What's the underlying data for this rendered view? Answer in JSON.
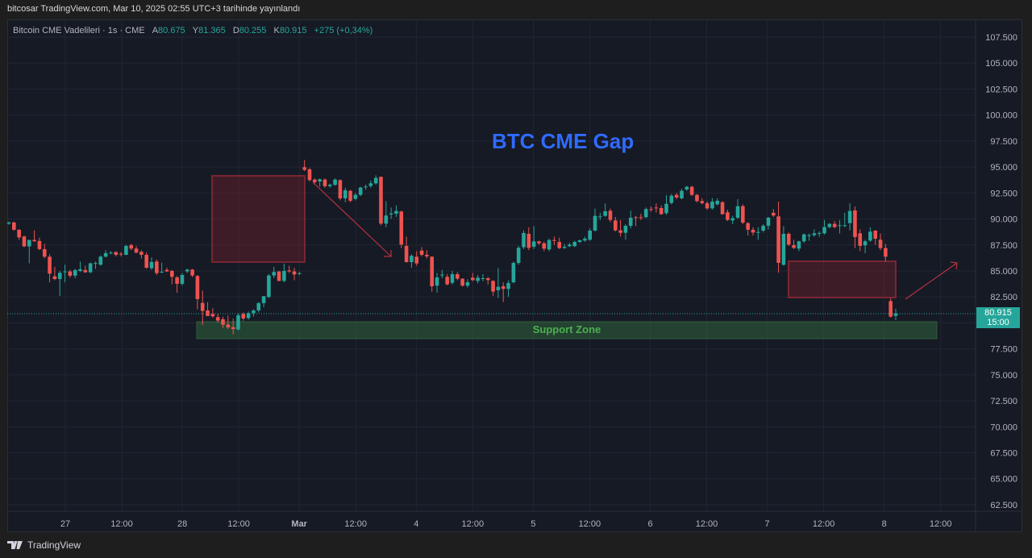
{
  "header": {
    "published_line": "bitcosar TradingView.com, Mar 10, 2025 02:55 UTC+3 tarihinde yayınlandı"
  },
  "legend": {
    "symbol": "Bitcoin CME Vadelileri · 1s · CME",
    "open_label": "A",
    "open": "80.675",
    "high_label": "Y",
    "high": "81.365",
    "low_label": "D",
    "low": "80.255",
    "close_label": "K",
    "close": "80.915",
    "change": "+275 (+0,34%)"
  },
  "annotations": {
    "title": "BTC CME Gap",
    "support": "Support Zone"
  },
  "price_tag": {
    "price": "80.915",
    "countdown": "15:00"
  },
  "footer": {
    "brand": "TradingView"
  },
  "colors": {
    "up": "#26a69a",
    "down": "#ef5350",
    "background": "#161a25",
    "gap_box": "#7a1f2b",
    "support_zone": "#2e5e3a",
    "title": "#2f6bff"
  },
  "chart_data": {
    "type": "candlestick",
    "title": "",
    "ylim": [
      61.9,
      109.2
    ],
    "grid": true,
    "y_ticks": [
      "107.500",
      "105.000",
      "102.500",
      "100.000",
      "97.500",
      "95.000",
      "92.500",
      "90.000",
      "87.500",
      "85.000",
      "82.500",
      "77.500",
      "75.000",
      "72.500",
      "70.000",
      "67.500",
      "65.000",
      "62.500"
    ],
    "y_tick_values": [
      107.5,
      105,
      102.5,
      100,
      97.5,
      95,
      92.5,
      90,
      87.5,
      85,
      82.5,
      77.5,
      75,
      72.5,
      70,
      67.5,
      65,
      62.5
    ],
    "x_ticks": [
      "27",
      "12:00",
      "28",
      "12:00",
      "Mar",
      "12:00",
      "4",
      "12:00",
      "5",
      "12:00",
      "6",
      "12:00",
      "7",
      "12:00",
      "8",
      "12:00"
    ],
    "last_price": 80.915,
    "ohlc": [
      [
        89.55,
        89.75,
        89.45,
        89.66
      ],
      [
        89.66,
        89.75,
        88.9,
        88.96
      ],
      [
        88.96,
        89.0,
        88.0,
        88.23
      ],
      [
        88.31,
        88.4,
        87.3,
        87.36
      ],
      [
        87.36,
        88.0,
        85.73,
        87.98
      ],
      [
        87.98,
        88.9,
        87.8,
        87.85
      ],
      [
        87.88,
        88.2,
        87.0,
        87.1
      ],
      [
        87.1,
        87.6,
        86.2,
        86.37
      ],
      [
        86.37,
        86.6,
        83.9,
        84.74
      ],
      [
        84.48,
        85.4,
        84.1,
        84.22
      ],
      [
        84.22,
        85.0,
        82.6,
        84.82
      ],
      [
        84.9,
        85.6,
        83.9,
        84.95
      ],
      [
        84.95,
        85.1,
        84.35,
        84.54
      ],
      [
        84.54,
        85.2,
        84.3,
        85.08
      ],
      [
        85.0,
        85.9,
        84.9,
        85.16
      ],
      [
        85.08,
        85.5,
        84.8,
        84.87
      ],
      [
        84.87,
        85.8,
        84.8,
        85.73
      ],
      [
        85.7,
        85.9,
        85.2,
        85.76
      ],
      [
        85.6,
        86.5,
        85.5,
        86.37
      ],
      [
        86.37,
        87.0,
        86.3,
        86.71
      ],
      [
        86.72,
        86.9,
        86.6,
        86.76
      ],
      [
        86.81,
        86.9,
        86.4,
        86.55
      ],
      [
        86.66,
        86.8,
        86.4,
        86.63
      ],
      [
        86.55,
        87.5,
        86.5,
        87.41
      ],
      [
        87.49,
        87.6,
        87.0,
        87.15
      ],
      [
        87.15,
        87.4,
        86.7,
        86.76
      ],
      [
        86.84,
        87.0,
        86.2,
        86.55
      ],
      [
        86.55,
        86.8,
        85.2,
        85.31
      ],
      [
        85.26,
        86.3,
        85.1,
        85.86
      ],
      [
        85.91,
        86.1,
        84.6,
        84.79
      ],
      [
        84.9,
        85.8,
        84.8,
        84.92
      ],
      [
        85.1,
        85.3,
        84.9,
        84.95
      ],
      [
        85.0,
        85.1,
        83.7,
        84.43
      ],
      [
        84.38,
        84.5,
        82.9,
        83.76
      ],
      [
        83.76,
        84.8,
        83.6,
        84.61
      ],
      [
        84.95,
        85.2,
        84.8,
        85.13
      ],
      [
        85.13,
        85.2,
        84.4,
        84.56
      ],
      [
        84.51,
        84.6,
        81.3,
        82.29
      ],
      [
        81.92,
        83.1,
        79.8,
        81.15
      ],
      [
        81.2,
        82.0,
        80.9,
        80.66
      ],
      [
        80.86,
        81.4,
        80.5,
        80.63
      ],
      [
        80.55,
        80.9,
        80.0,
        80.22
      ],
      [
        80.35,
        80.6,
        79.5,
        79.83
      ],
      [
        79.83,
        80.7,
        79.4,
        79.57
      ],
      [
        79.59,
        80.4,
        78.9,
        79.41
      ],
      [
        79.36,
        80.9,
        79.3,
        80.73
      ],
      [
        80.86,
        81.0,
        80.2,
        80.42
      ],
      [
        80.47,
        81.1,
        80.3,
        80.94
      ],
      [
        80.94,
        81.3,
        80.6,
        81.2
      ],
      [
        81.2,
        82.0,
        81.0,
        81.9
      ],
      [
        81.9,
        82.6,
        81.5,
        82.57
      ],
      [
        82.49,
        84.7,
        82.4,
        84.56
      ],
      [
        84.56,
        85.4,
        84.3,
        84.9
      ],
      [
        84.95,
        85.0,
        84.0,
        84.04
      ],
      [
        84.04,
        85.7,
        83.9,
        85.0
      ],
      [
        85.05,
        85.5,
        84.8,
        84.95
      ],
      [
        84.95,
        85.3,
        84.1,
        84.66
      ],
      [
        84.74,
        84.9,
        84.6,
        84.79
      ],
      [
        94.98,
        95.68,
        94.6,
        94.73
      ],
      [
        94.78,
        94.9,
        93.6,
        93.74
      ],
      [
        93.79,
        93.9,
        93.3,
        93.54
      ],
      [
        93.61,
        93.9,
        93.1,
        93.82
      ],
      [
        93.79,
        93.9,
        93.0,
        93.15
      ],
      [
        93.17,
        93.4,
        93.0,
        93.3
      ],
      [
        93.28,
        93.9,
        93.2,
        93.79
      ],
      [
        93.74,
        93.8,
        91.8,
        91.98
      ],
      [
        91.98,
        93.0,
        91.6,
        92.76
      ],
      [
        92.71,
        92.8,
        91.6,
        91.75
      ],
      [
        91.93,
        92.5,
        91.8,
        92.32
      ],
      [
        92.32,
        93.1,
        92.2,
        93.02
      ],
      [
        93.1,
        93.3,
        92.8,
        93.12
      ],
      [
        93.17,
        93.7,
        93.0,
        93.43
      ],
      [
        93.43,
        94.2,
        93.3,
        93.95
      ],
      [
        94.05,
        94.1,
        89.4,
        89.55
      ],
      [
        89.55,
        91.7,
        89.2,
        90.33
      ],
      [
        90.43,
        91.1,
        90.0,
        90.53
      ],
      [
        90.51,
        91.3,
        90.2,
        90.77
      ],
      [
        90.72,
        90.8,
        87.2,
        87.53
      ],
      [
        87.4,
        88.3,
        85.8,
        85.85
      ],
      [
        85.85,
        86.6,
        85.3,
        86.45
      ],
      [
        86.37,
        86.9,
        85.5,
        85.72
      ],
      [
        86.96,
        87.3,
        86.4,
        86.55
      ],
      [
        86.55,
        87.0,
        86.2,
        86.4
      ],
      [
        86.37,
        86.4,
        83.0,
        83.52
      ],
      [
        83.58,
        84.8,
        82.9,
        84.38
      ],
      [
        84.6,
        85.1,
        84.3,
        84.64
      ],
      [
        84.43,
        84.7,
        83.6,
        83.71
      ],
      [
        83.86,
        85.0,
        83.7,
        84.69
      ],
      [
        84.69,
        84.9,
        84.1,
        84.25
      ],
      [
        84.25,
        84.3,
        83.5,
        83.58
      ],
      [
        83.58,
        84.2,
        83.4,
        83.91
      ],
      [
        84.35,
        84.8,
        84.0,
        84.12
      ],
      [
        84.04,
        84.6,
        83.8,
        84.35
      ],
      [
        84.3,
        84.7,
        84.0,
        84.3
      ],
      [
        84.3,
        84.4,
        83.7,
        84.12
      ],
      [
        84.04,
        84.1,
        82.6,
        83.01
      ],
      [
        83.14,
        85.3,
        82.4,
        83.47
      ],
      [
        83.52,
        83.9,
        82.0,
        83.27
      ],
      [
        83.27,
        84.1,
        82.5,
        83.83
      ],
      [
        83.91,
        85.9,
        83.8,
        85.77
      ],
      [
        85.77,
        87.4,
        85.6,
        87.22
      ],
      [
        87.28,
        88.9,
        87.1,
        88.65
      ],
      [
        88.57,
        89.2,
        87.0,
        87.22
      ],
      [
        87.33,
        89.3,
        87.1,
        87.84
      ],
      [
        87.84,
        87.9,
        87.5,
        87.66
      ],
      [
        87.66,
        87.8,
        86.9,
        87.14
      ],
      [
        87.07,
        88.1,
        86.9,
        87.97
      ],
      [
        87.97,
        88.3,
        87.5,
        87.92
      ],
      [
        87.79,
        88.2,
        87.1,
        87.2
      ],
      [
        87.22,
        87.6,
        87.1,
        87.33
      ],
      [
        87.38,
        87.7,
        87.3,
        87.53
      ],
      [
        87.38,
        87.9,
        87.3,
        87.79
      ],
      [
        87.79,
        88.0,
        87.7,
        87.95
      ],
      [
        87.92,
        88.3,
        87.8,
        88.1
      ],
      [
        88.0,
        89.1,
        87.9,
        88.88
      ],
      [
        88.88,
        91.0,
        88.8,
        90.3
      ],
      [
        90.25,
        90.6,
        89.9,
        90.25
      ],
      [
        90.3,
        91.5,
        90.2,
        90.74
      ],
      [
        90.79,
        91.0,
        89.7,
        89.91
      ],
      [
        89.86,
        90.2,
        88.8,
        88.9
      ],
      [
        88.9,
        89.9,
        88.3,
        88.67
      ],
      [
        88.67,
        89.5,
        88.0,
        89.34
      ],
      [
        89.34,
        90.8,
        89.1,
        90.12
      ],
      [
        90.17,
        90.3,
        89.3,
        90.12
      ],
      [
        90.17,
        90.5,
        89.9,
        90.1
      ],
      [
        90.17,
        91.1,
        90.1,
        90.95
      ],
      [
        90.95,
        91.2,
        90.7,
        90.9
      ],
      [
        91.1,
        91.5,
        90.6,
        91.05
      ],
      [
        91.05,
        91.3,
        90.4,
        90.46
      ],
      [
        90.56,
        92.3,
        90.4,
        91.46
      ],
      [
        91.54,
        92.4,
        91.4,
        92.24
      ],
      [
        92.32,
        92.5,
        91.9,
        92.06
      ],
      [
        91.98,
        92.9,
        91.9,
        92.71
      ],
      [
        92.84,
        93.2,
        92.7,
        93.09
      ],
      [
        93.09,
        93.2,
        92.2,
        92.32
      ],
      [
        92.32,
        92.4,
        91.6,
        91.72
      ],
      [
        91.72,
        92.0,
        91.4,
        91.52
      ],
      [
        91.52,
        91.7,
        90.9,
        91.02
      ],
      [
        91.02,
        92.0,
        90.9,
        91.67
      ],
      [
        91.41,
        92.0,
        91.3,
        91.75
      ],
      [
        91.62,
        91.7,
        90.4,
        90.46
      ],
      [
        90.64,
        90.9,
        89.8,
        89.91
      ],
      [
        89.86,
        90.3,
        89.5,
        90.07
      ],
      [
        90.12,
        91.9,
        90.0,
        91.23
      ],
      [
        91.23,
        91.4,
        89.5,
        89.65
      ],
      [
        89.6,
        89.7,
        88.4,
        88.96
      ],
      [
        88.96,
        89.2,
        88.4,
        88.7
      ],
      [
        88.7,
        89.2,
        88.0,
        88.75
      ],
      [
        88.88,
        89.5,
        88.7,
        89.35
      ],
      [
        89.35,
        90.2,
        89.0,
        90.12
      ],
      [
        90.59,
        90.95,
        90.2,
        90.33
      ],
      [
        90.25,
        91.67,
        84.82,
        85.78
      ],
      [
        85.59,
        89.3,
        85.5,
        88.57
      ],
      [
        88.57,
        88.7,
        87.4,
        87.53
      ],
      [
        87.48,
        88.0,
        87.1,
        87.22
      ],
      [
        87.15,
        87.9,
        86.9,
        87.85
      ],
      [
        87.85,
        88.6,
        87.7,
        88.52
      ],
      [
        88.4,
        88.6,
        87.9,
        88.44
      ],
      [
        88.44,
        89.0,
        88.3,
        88.62
      ],
      [
        88.6,
        88.8,
        88.3,
        88.65
      ],
      [
        88.62,
        89.9,
        88.5,
        89.22
      ],
      [
        89.22,
        89.6,
        89.1,
        89.53
      ],
      [
        89.53,
        89.8,
        89.1,
        89.22
      ],
      [
        89.38,
        89.9,
        88.6,
        89.4
      ],
      [
        89.38,
        90.6,
        89.2,
        89.4
      ],
      [
        89.6,
        91.5,
        88.9,
        90.77
      ],
      [
        90.82,
        91.2,
        87.2,
        88.26
      ],
      [
        88.62,
        89.0,
        86.9,
        87.41
      ],
      [
        87.46,
        88.0,
        86.7,
        87.85
      ],
      [
        87.92,
        89.2,
        87.8,
        88.78
      ],
      [
        88.88,
        88.9,
        87.5,
        88.1
      ],
      [
        88.0,
        88.6,
        87.0,
        87.2
      ],
      [
        87.2,
        87.6,
        85.9,
        86.37
      ],
      [
        82.1,
        82.36,
        80.5,
        80.6
      ],
      [
        80.675,
        81.365,
        80.255,
        80.915
      ]
    ]
  }
}
